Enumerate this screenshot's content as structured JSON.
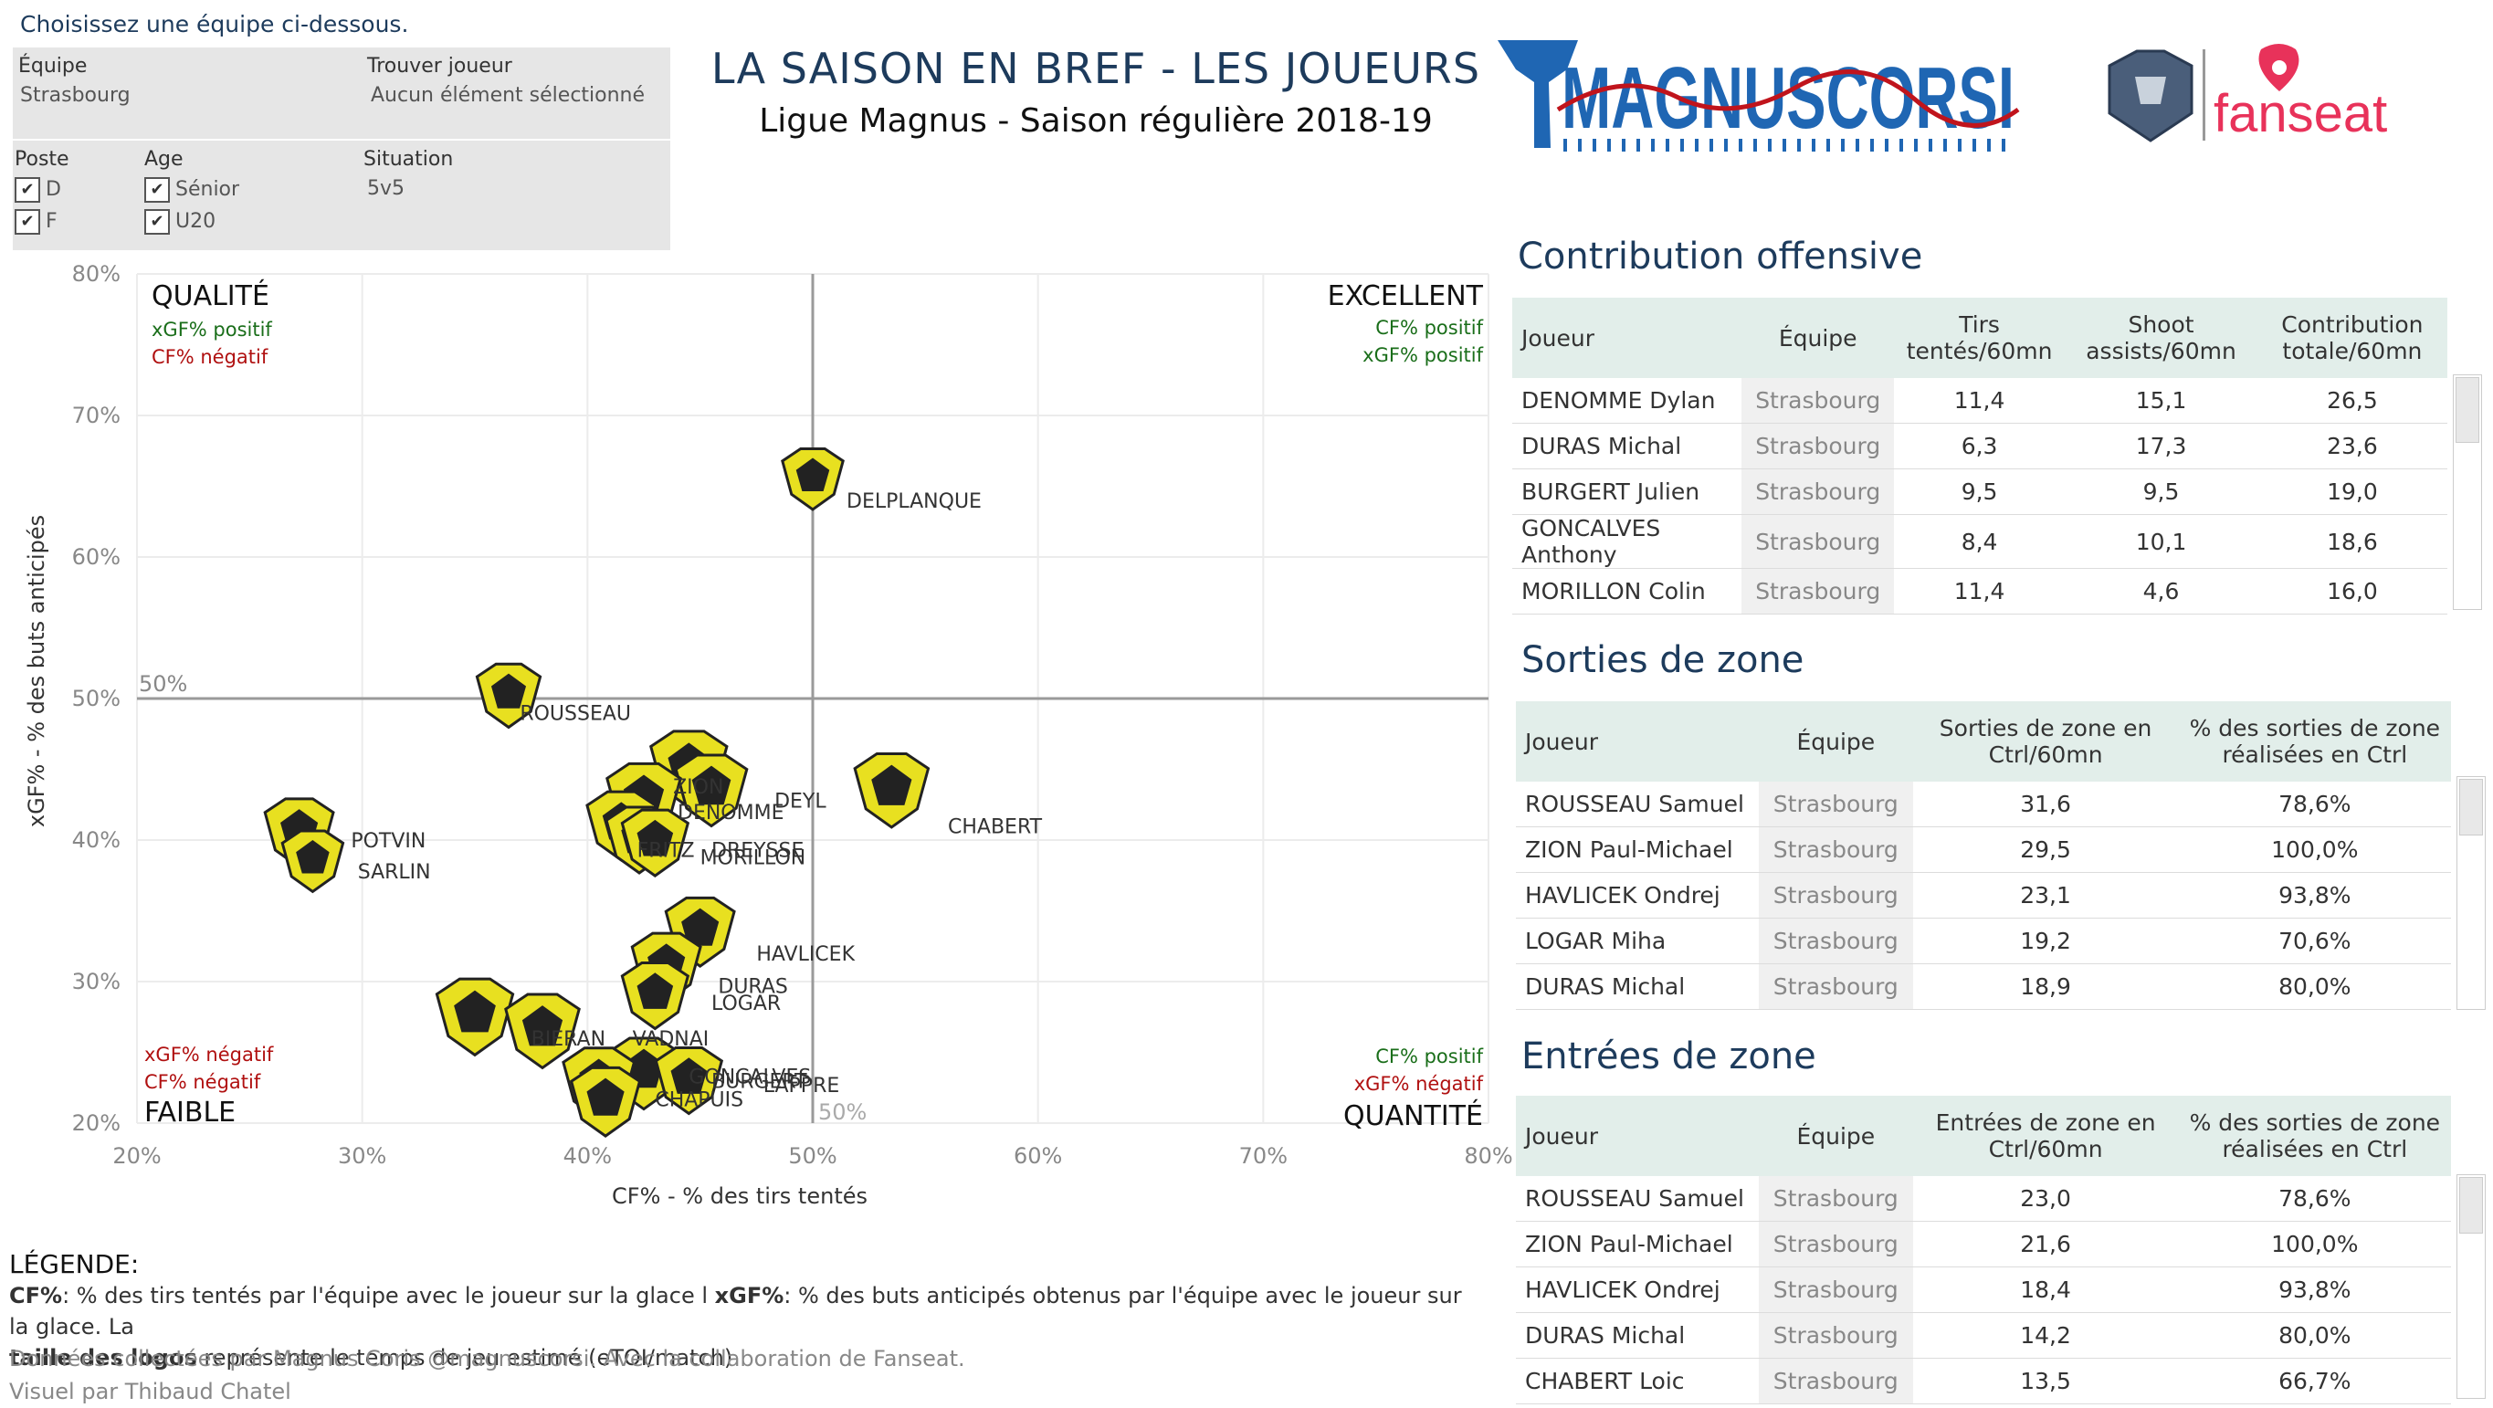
{
  "header": {
    "choose_text": "Choisissez une équipe ci-dessous.",
    "title": "LA SAISON EN BREF - LES JOUEURS",
    "subtitle": "Ligue Magnus - Saison régulière 2018-19",
    "logo_text": "MAGNUSCORSI",
    "partner_text": "fanseat"
  },
  "filters": {
    "team_label": "Équipe",
    "team_value": "Strasbourg",
    "player_label": "Trouver joueur",
    "player_value": "Aucun élément sélectionné",
    "position_label": "Poste",
    "position_options": [
      "D",
      "F"
    ],
    "age_label": "Age",
    "age_options": [
      "Sénior",
      "U20"
    ],
    "situation_label": "Situation",
    "situation_value": "5v5",
    "check_glyph": "✔"
  },
  "colors": {
    "accent": "#1d3b5c",
    "positive": "#1a6e1a",
    "negative": "#b01010",
    "logo_yellow": "#e8e020",
    "header_bg": "#e2eeea"
  },
  "chart_data": {
    "type": "scatter",
    "xlabel": "CF% - % des tirs tentés",
    "ylabel": "xGF% - % des buts anticipés",
    "xlim": [
      20,
      80
    ],
    "ylim": [
      20,
      80
    ],
    "xticks": [
      "20%",
      "30%",
      "40%",
      "50%",
      "60%",
      "70%",
      "80%"
    ],
    "yticks": [
      "20%",
      "30%",
      "40%",
      "50%",
      "60%",
      "70%",
      "80%"
    ],
    "grid": true,
    "reference_lines": {
      "x": 50,
      "y": 50,
      "x_label": "50%",
      "y_label": "50%"
    },
    "quadrants": {
      "top_left": {
        "title": "QUALITÉ",
        "line1": "xGF% positif",
        "line2": "CF% négatif"
      },
      "top_right": {
        "title": "EXCELLENT",
        "line1": "CF% positif",
        "line2": "xGF% positif"
      },
      "bottom_left": {
        "title": "FAIBLE",
        "line1": "xGF% négatif",
        "line2": "CF% négatif"
      },
      "bottom_right": {
        "title": "QUANTITÉ",
        "line1": "CF% positif",
        "line2": "xGF% négatif"
      }
    },
    "points": [
      {
        "name": "DELPLANQUE",
        "x": 50.0,
        "y": 65.5,
        "size": 0.8
      },
      {
        "name": "ROUSSEAU",
        "x": 36.5,
        "y": 50.2,
        "size": 0.9
      },
      {
        "name": "CHABERT",
        "x": 53.5,
        "y": 43.5,
        "size": 1.3
      },
      {
        "name": "POTVIN",
        "x": 27.2,
        "y": 40.5,
        "size": 1.1
      },
      {
        "name": "SARLIN",
        "x": 27.8,
        "y": 38.5,
        "size": 0.8
      },
      {
        "name": "ZION",
        "x": 44.5,
        "y": 45.0,
        "size": 1.4
      },
      {
        "name": "DEYL",
        "x": 45.5,
        "y": 43.5,
        "size": 1.2
      },
      {
        "name": "DENOMME",
        "x": 42.5,
        "y": 42.8,
        "size": 1.3
      },
      {
        "name": "FRITZ",
        "x": 41.5,
        "y": 41.0,
        "size": 1.1
      },
      {
        "name": "DREYSSE",
        "x": 42.3,
        "y": 40.0,
        "size": 1.0
      },
      {
        "name": "MORILLON",
        "x": 43.0,
        "y": 39.8,
        "size": 1.0
      },
      {
        "name": "HAVLICEK",
        "x": 45.0,
        "y": 33.5,
        "size": 1.1
      },
      {
        "name": "DURAS",
        "x": 43.5,
        "y": 31.0,
        "size": 1.1
      },
      {
        "name": "LOGAR",
        "x": 43.0,
        "y": 29.0,
        "size": 1.0
      },
      {
        "name": "BIERAN",
        "x": 35.0,
        "y": 27.5,
        "size": 1.4
      },
      {
        "name": "VADNAI",
        "x": 38.0,
        "y": 26.5,
        "size": 1.3
      },
      {
        "name": "GONCALVES",
        "x": 42.5,
        "y": 23.5,
        "size": 1.2
      },
      {
        "name": "BURGERT",
        "x": 40.5,
        "y": 22.8,
        "size": 1.2
      },
      {
        "name": "LAPPRE",
        "x": 44.5,
        "y": 23.0,
        "size": 1.0
      },
      {
        "name": "CHAPUIS",
        "x": 40.8,
        "y": 21.5,
        "size": 1.1
      }
    ]
  },
  "labels_shown": [
    {
      "text": "DELPLANQUE",
      "x": 51.5,
      "y": 63.5
    },
    {
      "text": "ROUSSEAU",
      "x": 37.0,
      "y": 48.5
    },
    {
      "text": "CHABERT",
      "x": 56.0,
      "y": 40.5
    },
    {
      "text": "POTVIN",
      "x": 29.5,
      "y": 39.5
    },
    {
      "text": "SARLIN",
      "x": 29.8,
      "y": 37.3
    },
    {
      "text": "ZION",
      "x": 43.8,
      "y": 43.3
    },
    {
      "text": "DEYL",
      "x": 48.3,
      "y": 42.3
    },
    {
      "text": "DENOMME",
      "x": 44.0,
      "y": 41.5
    },
    {
      "text": "FRITZ",
      "x": 42.2,
      "y": 38.8
    },
    {
      "text": "DREYSSE",
      "x": 45.5,
      "y": 38.8
    },
    {
      "text": "MORILLON",
      "x": 45.0,
      "y": 38.3
    },
    {
      "text": "HAVLICEK",
      "x": 47.5,
      "y": 31.5
    },
    {
      "text": "DURAS",
      "x": 45.8,
      "y": 29.2
    },
    {
      "text": "LOGAR",
      "x": 45.5,
      "y": 28.0
    },
    {
      "text": "BIERAN",
      "x": 37.5,
      "y": 25.5
    },
    {
      "text": "VADNAI",
      "x": 42.0,
      "y": 25.5
    },
    {
      "text": "GONCALVES",
      "x": 44.5,
      "y": 22.8
    },
    {
      "text": "BURGERT",
      "x": 45.5,
      "y": 22.5
    },
    {
      "text": "LAPPRE",
      "x": 47.8,
      "y": 22.2
    },
    {
      "text": "CHAPUIS",
      "x": 43.0,
      "y": 21.2
    }
  ],
  "tables": {
    "contribution": {
      "title": "Contribution offensive",
      "headers": [
        "Joueur",
        "Équipe",
        "Tirs\ntentés/60mn",
        "Shoot\nassists/60mn",
        "Contribution\ntotale/60mn"
      ],
      "rows": [
        [
          "DENOMME Dylan",
          "Strasbourg",
          "11,4",
          "15,1",
          "26,5"
        ],
        [
          "DURAS Michal",
          "Strasbourg",
          "6,3",
          "17,3",
          "23,6"
        ],
        [
          "BURGERT Julien",
          "Strasbourg",
          "9,5",
          "9,5",
          "19,0"
        ],
        [
          "GONCALVES Anthony",
          "Strasbourg",
          "8,4",
          "10,1",
          "18,6"
        ],
        [
          "MORILLON Colin",
          "Strasbourg",
          "11,4",
          "4,6",
          "16,0"
        ]
      ]
    },
    "sorties": {
      "title": "Sorties de zone",
      "headers": [
        "Joueur",
        "Équipe",
        "Sorties de zone en\nCtrl/60mn",
        "% des sorties de zone\nréalisées en Ctrl"
      ],
      "rows": [
        [
          "ROUSSEAU Samuel",
          "Strasbourg",
          "31,6",
          "78,6%"
        ],
        [
          "ZION Paul-Michael",
          "Strasbourg",
          "29,5",
          "100,0%"
        ],
        [
          "HAVLICEK Ondrej",
          "Strasbourg",
          "23,1",
          "93,8%"
        ],
        [
          "LOGAR Miha",
          "Strasbourg",
          "19,2",
          "70,6%"
        ],
        [
          "DURAS Michal",
          "Strasbourg",
          "18,9",
          "80,0%"
        ]
      ]
    },
    "entrees": {
      "title": "Entrées de zone",
      "headers": [
        "Joueur",
        "Équipe",
        "Entrées de zone en\nCtrl/60mn",
        "% des sorties de zone\nréalisées en Ctrl"
      ],
      "rows": [
        [
          "ROUSSEAU Samuel",
          "Strasbourg",
          "23,0",
          "78,6%"
        ],
        [
          "ZION Paul-Michael",
          "Strasbourg",
          "21,6",
          "100,0%"
        ],
        [
          "HAVLICEK Ondrej",
          "Strasbourg",
          "18,4",
          "93,8%"
        ],
        [
          "DURAS Michal",
          "Strasbourg",
          "14,2",
          "80,0%"
        ],
        [
          "CHABERT Loic",
          "Strasbourg",
          "13,5",
          "66,7%"
        ]
      ]
    }
  },
  "legend": {
    "title": "LÉGENDE:",
    "cf_key": "CF%",
    "cf_text": ": % des tirs tentés par l'équipe avec le joueur sur la glace l ",
    "xgf_key": "xGF%",
    "xgf_text": ": % des buts anticipés obtenus par l'équipe avec le joueur sur la glace. La ",
    "size_key": "taille des logos",
    "size_text": " représente le temps de jeu estimé (eTOI/match)",
    "credit1": "Données collectées par Magnus Coris @magnuscorsi. Avec la collaboration de Fanseat.",
    "credit2": "Visuel par Thibaud Chatel"
  }
}
